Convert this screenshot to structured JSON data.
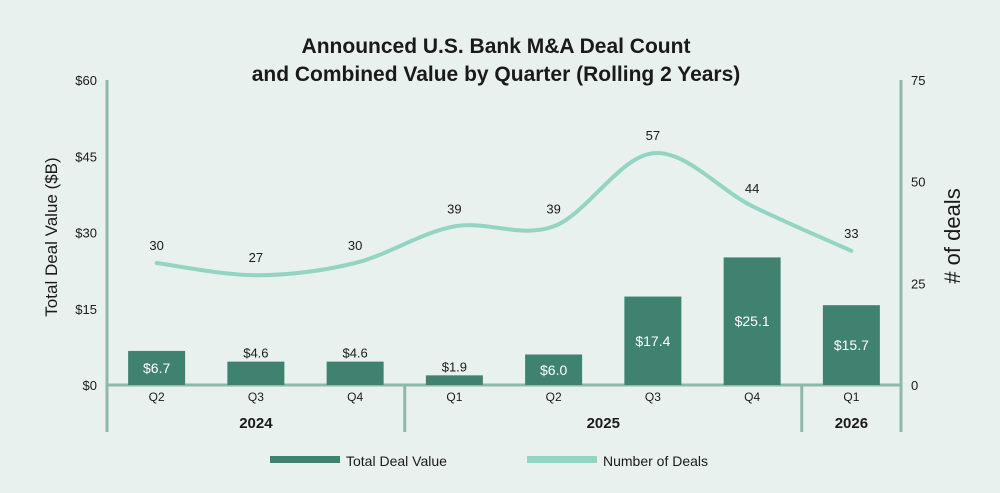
{
  "colors": {
    "bar": "#3f8270",
    "line": "#93d4c3",
    "axis": "#8fb8ab",
    "background": "#e9f1ee"
  },
  "chart_data": {
    "type": "bar",
    "title_lines": [
      "Announced U.S. Bank M&A Deal Count",
      "and Combined Value by Quarter (Rolling 2 Years)"
    ],
    "categories": [
      "Q2",
      "Q3",
      "Q4",
      "Q1",
      "Q2",
      "Q3",
      "Q4",
      "Q1"
    ],
    "year_groups": [
      {
        "label": "2024",
        "count": 3
      },
      {
        "label": "2025",
        "count": 4
      },
      {
        "label": "2026",
        "count": 1
      }
    ],
    "series": [
      {
        "name": "Total Deal Value",
        "type": "bar",
        "axis": "left",
        "values": [
          6.7,
          4.6,
          4.6,
          1.9,
          6.0,
          17.4,
          25.1,
          15.7
        ],
        "labels": [
          "$6.7",
          "$4.6",
          "$4.6",
          "$1.9",
          "$6.0",
          "$17.4",
          "$25.1",
          "$15.7"
        ]
      },
      {
        "name": "Number of Deals",
        "type": "line",
        "axis": "right",
        "values": [
          30,
          27,
          30,
          39,
          39,
          57,
          44,
          33
        ],
        "labels": [
          "30",
          "27",
          "30",
          "39",
          "39",
          "57",
          "44",
          "33"
        ]
      }
    ],
    "ylabel_left": "Total Deal Value ($B)",
    "ylabel_right": "# of deals",
    "ylim_left": [
      0,
      60
    ],
    "ylim_right": [
      0,
      75
    ],
    "yticks_left": [
      "$0",
      "$15",
      "$30",
      "$45",
      "$60"
    ],
    "yticks_right": [
      "0",
      "25",
      "50",
      "75"
    ],
    "legend": [
      "Total Deal Value",
      "Number of Deals"
    ],
    "legend_position": "bottom-center",
    "grid": false
  }
}
